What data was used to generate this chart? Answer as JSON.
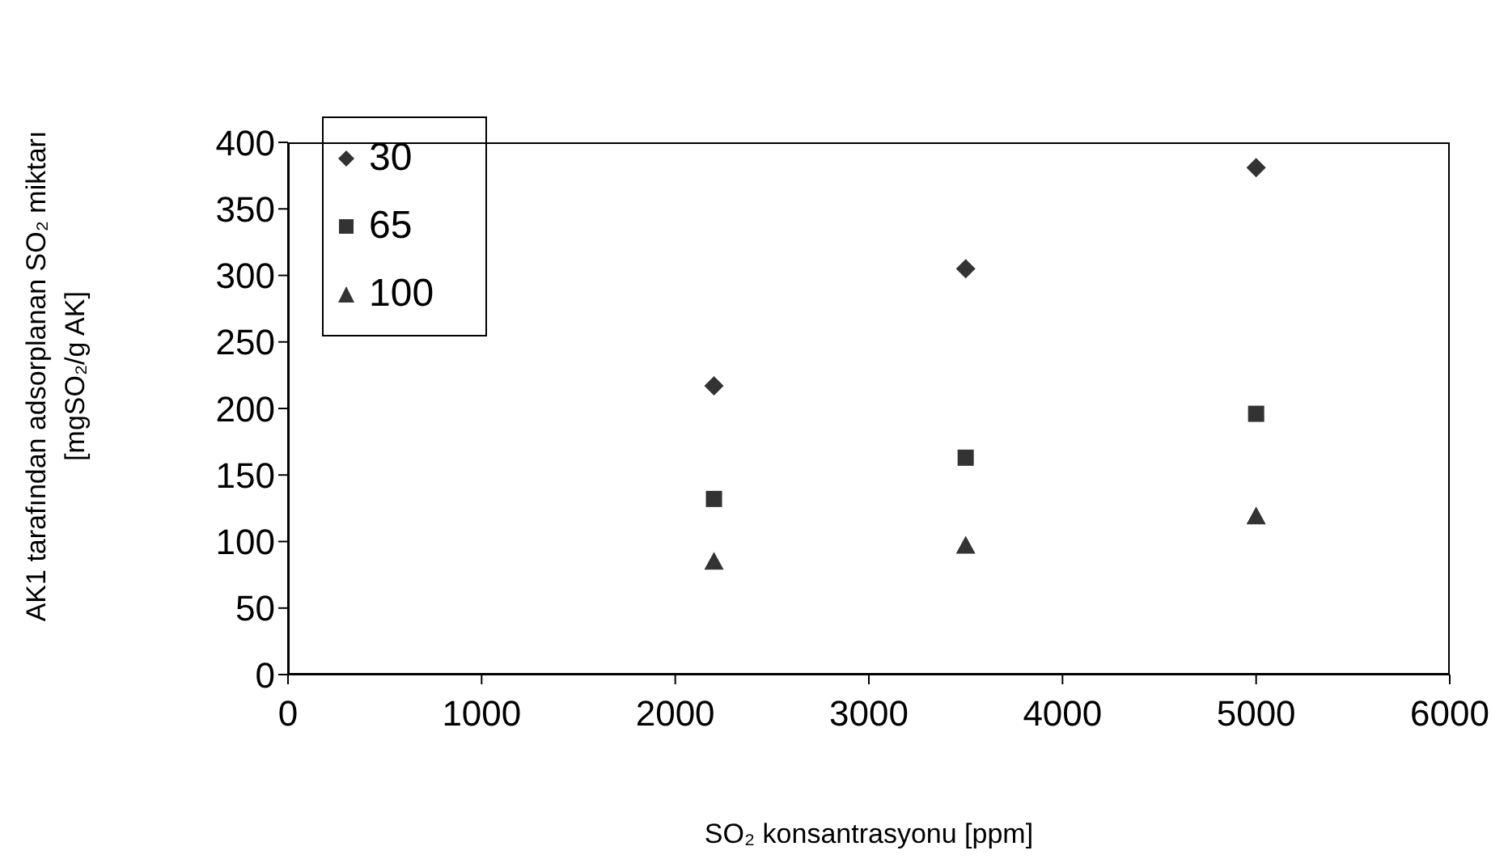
{
  "chart_data": {
    "type": "scatter",
    "xlabel": "SO₂ konsantrasyonu [ppm]",
    "ylabel": "AK1 tarafından adsorplanan SO₂ miktarı\n[mgSO₂/g AK]",
    "x": [
      2200,
      3500,
      5000
    ],
    "series": [
      {
        "name": "30",
        "color": "#333333",
        "marker": "diamond",
        "values": [
          217,
          305,
          381
        ]
      },
      {
        "name": "65",
        "color": "#333333",
        "marker": "square",
        "values": [
          132,
          163,
          196
        ]
      },
      {
        "name": "100",
        "color": "#333333",
        "marker": "triangle",
        "values": [
          85,
          97,
          119
        ]
      }
    ],
    "xlim": [
      0,
      6000
    ],
    "xticks": [
      0,
      1000,
      2000,
      3000,
      4000,
      5000,
      6000
    ],
    "ylim": [
      0,
      400
    ],
    "yticks": [
      0,
      50,
      100,
      150,
      200,
      250,
      300,
      350,
      400
    ],
    "grid": false,
    "legend": "top left"
  }
}
